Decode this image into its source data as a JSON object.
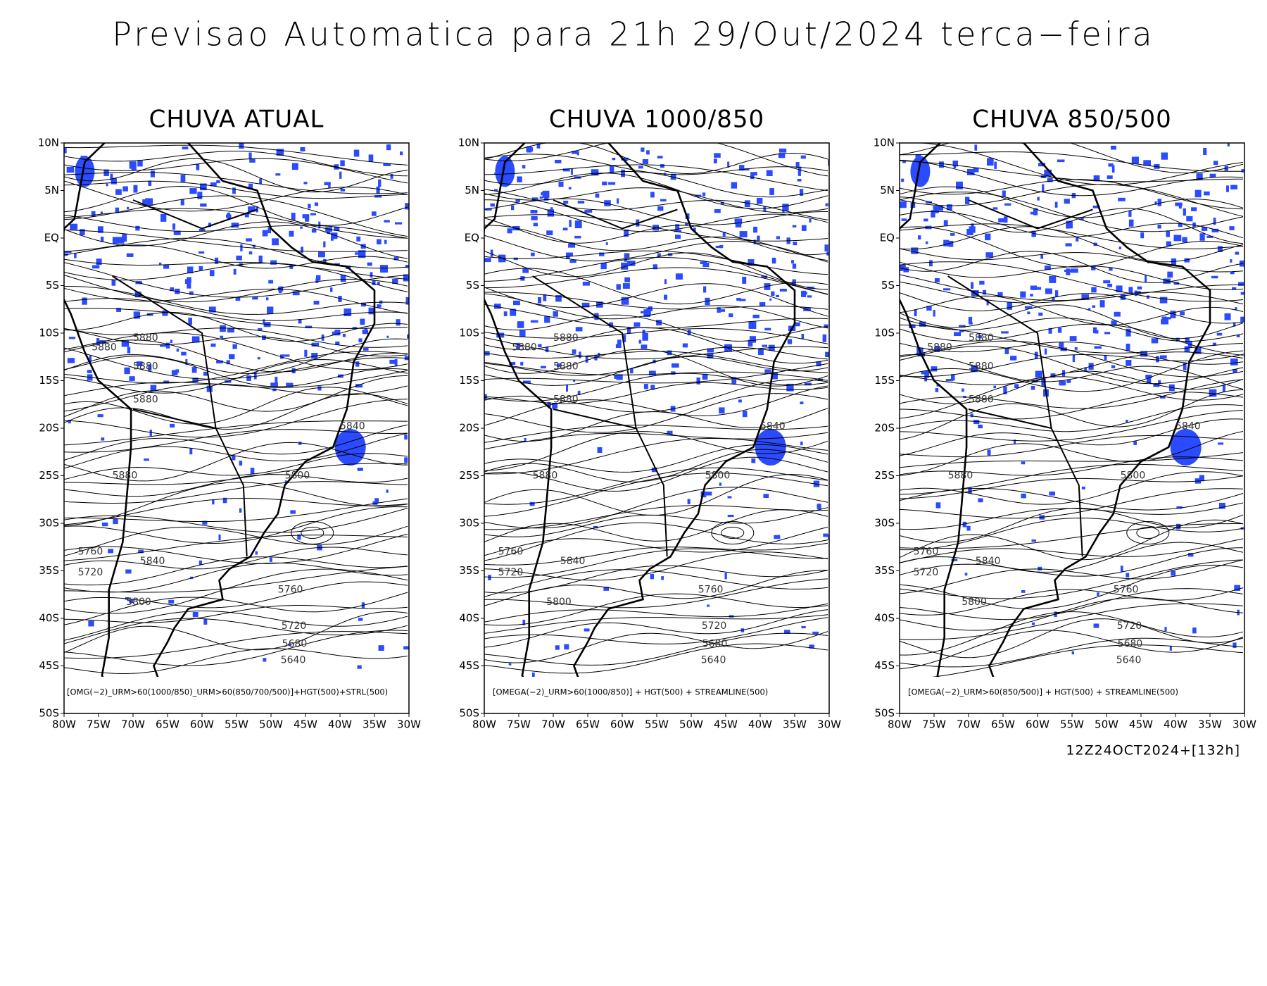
{
  "header": {
    "title": "Previsao Automatica para 21h 29/Out/2024 terca−feira"
  },
  "panels": [
    {
      "title": "CHUVA ATUAL",
      "caption": "[OMG(−2)_URM>60(1000/850)_URM>60(850/700/500)]+HGT(500)+STRL(500)",
      "contour_labels": [
        "5880",
        "5880",
        "5880",
        "5880",
        "5840",
        "5880",
        "5800",
        "5760",
        "5720",
        "5840",
        "5760",
        "5800",
        "5720",
        "5680",
        "5640"
      ]
    },
    {
      "title": "CHUVA 1000/850",
      "caption": "[OMEGA(−2)_URM>60(1000/850)] + HGT(500) + STREAMLINE(500)",
      "contour_labels": [
        "5880",
        "5880",
        "5880",
        "5880",
        "5840",
        "5880",
        "5800",
        "5760",
        "5720",
        "5840",
        "5760",
        "5800",
        "5720",
        "5680",
        "5640"
      ]
    },
    {
      "title": "CHUVA 850/500",
      "caption": "[OMEGA(−2)_URM>60(850/500)] + HGT(500) + STREAMLINE(500)",
      "contour_labels": [
        "5880",
        "5880",
        "5880",
        "5880",
        "5840",
        "5880",
        "5800",
        "5760",
        "5720",
        "5840",
        "5760",
        "5800",
        "5720",
        "5680",
        "5640"
      ]
    }
  ],
  "lat_ticks": [
    "10N",
    "5N",
    "EQ",
    "5S",
    "10S",
    "15S",
    "20S",
    "25S",
    "30S",
    "35S",
    "40S",
    "45S",
    "50S"
  ],
  "lon_ticks": [
    "80W",
    "75W",
    "70W",
    "65W",
    "60W",
    "55W",
    "50W",
    "45W",
    "40W",
    "35W",
    "30W"
  ],
  "footer": {
    "run": "12Z24OCT2024+[132h]"
  }
}
